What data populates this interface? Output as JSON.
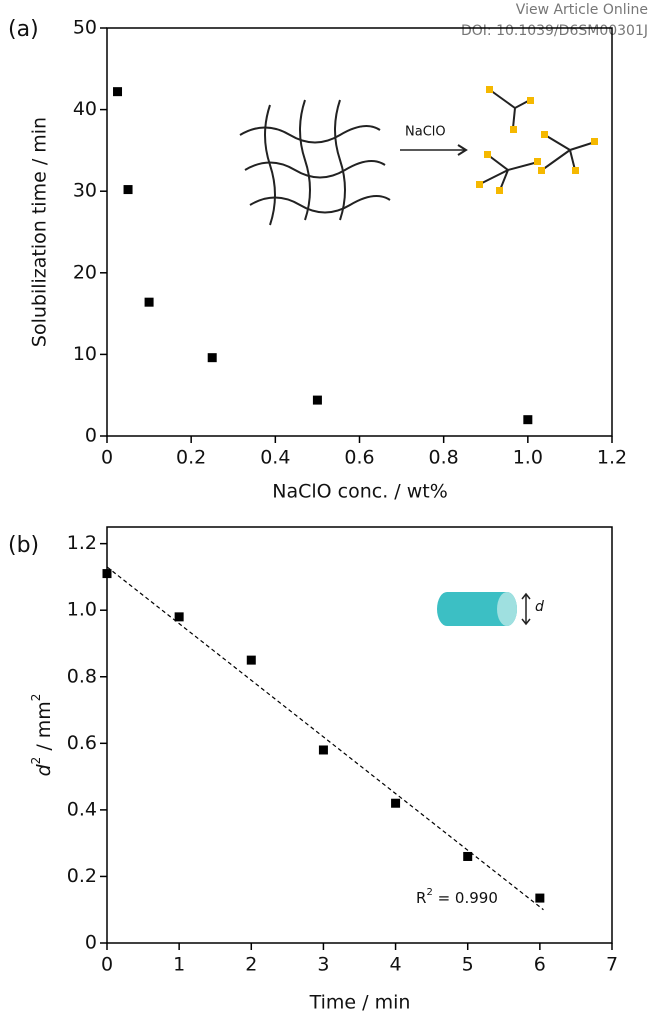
{
  "chart_data": [
    {
      "type": "scatter",
      "panel": "(a)",
      "x_label": "NaClO conc. / wt%",
      "y_label": "Solubilization time / min",
      "x": [
        0.025,
        0.05,
        0.1,
        0.25,
        0.5,
        1.0
      ],
      "values": [
        42.2,
        30.2,
        16.4,
        9.6,
        4.4,
        2.0
      ],
      "color": "#000000",
      "xlim": [
        0,
        1.2
      ],
      "xticks": [
        0,
        0.2,
        0.4,
        0.6,
        0.8,
        {
          "value": 1,
          "label": "1.0"
        },
        1.2
      ],
      "ylim": [
        0,
        50
      ],
      "yticks": [
        0,
        10,
        20,
        30,
        40,
        50
      ],
      "inset_label": "NaClO"
    },
    {
      "type": "scatter",
      "panel": "(b)",
      "x_label": "Time / min",
      "y_label": {
        "symbol": "d",
        "sup": "2",
        "unit": " / mm",
        "unit_sup": "2"
      },
      "x": [
        0,
        1,
        2,
        3,
        4,
        5,
        6
      ],
      "values": [
        1.11,
        0.98,
        0.85,
        0.58,
        0.42,
        0.26,
        0.135
      ],
      "color": "#000000",
      "fit_line": {
        "x": [
          0,
          6.05
        ],
        "y": [
          1.13,
          0.1
        ]
      },
      "annotation": {
        "symbol": "R",
        "sup": "2",
        "text": " = 0.990"
      },
      "inset_label": "d",
      "xlim": [
        0,
        7
      ],
      "xticks": [
        0,
        1,
        2,
        3,
        4,
        5,
        6,
        7
      ],
      "ylim": [
        0,
        1.25
      ],
      "yticks": [
        0,
        0.2,
        0.4,
        0.6,
        0.8,
        {
          "value": 1,
          "label": "1.0"
        },
        1.2
      ]
    }
  ],
  "watermark": {
    "line1": "View Article Online",
    "line2": "DOI: 10.1039/D6SM00301J"
  }
}
